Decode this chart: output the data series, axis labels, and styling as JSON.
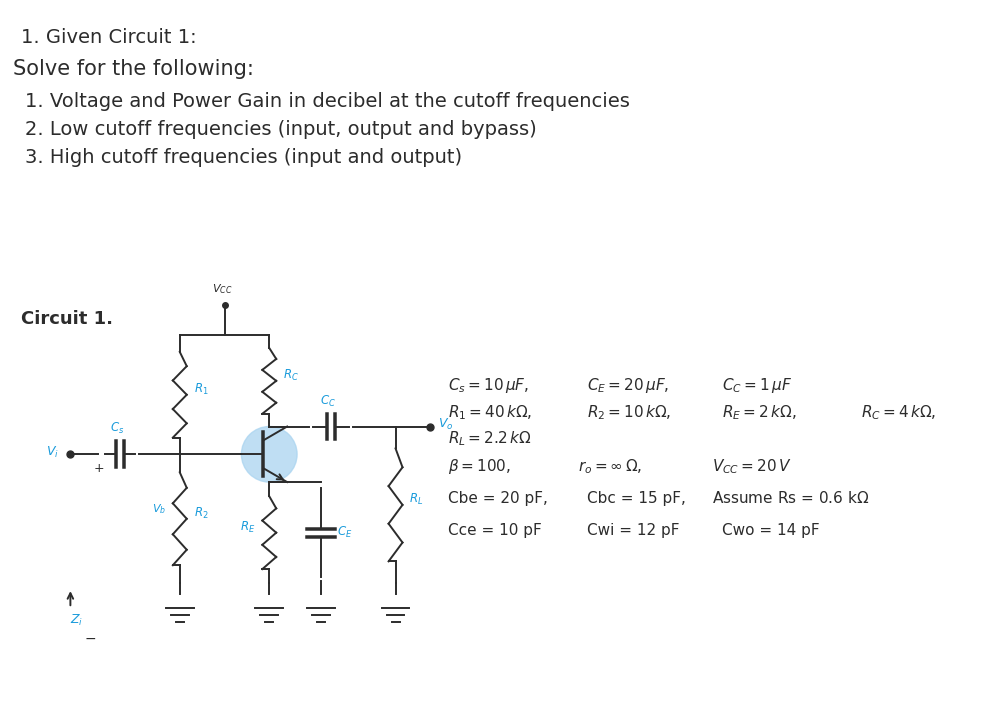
{
  "title_line1": "1. Given Circuit 1:",
  "title_line2": "Solve for the following:",
  "items": [
    "1. Voltage and Power Gain in decibel at the cutoff frequencies",
    "2. Low cutoff frequencies (input, output and bypass)",
    "3. High cutoff frequencies (input and output)"
  ],
  "circuit_label": "Circuit 1.",
  "bg_color": "#ffffff",
  "text_color": "#2c2c2c",
  "circuit_color": "#2c2c2c",
  "label_color": "#1a9bdb",
  "transistor_circle_color": "#aad4f0",
  "title1_fontsize": 14,
  "title2_fontsize": 15,
  "item_fontsize": 14,
  "circuit_label_fontsize": 13,
  "param_fontsize": 11,
  "circuit_lw": 1.4
}
